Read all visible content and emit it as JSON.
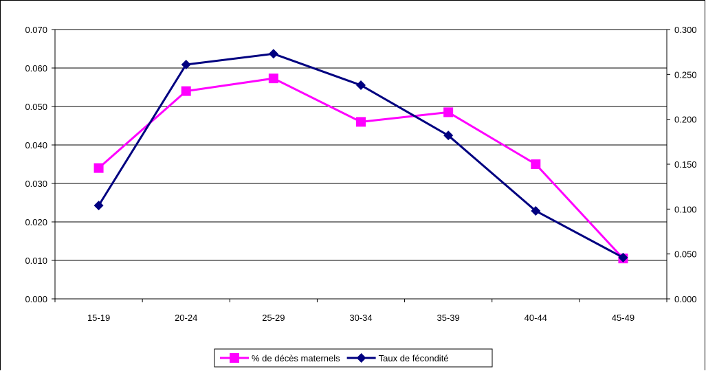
{
  "chart_data": {
    "type": "line",
    "categories": [
      "15-19",
      "20-24",
      "25-29",
      "30-34",
      "35-39",
      "40-44",
      "45-49"
    ],
    "series": [
      {
        "name": "% de décès maternels",
        "axis": "left",
        "color": "#ff00ff",
        "marker": "square",
        "values": [
          0.034,
          0.054,
          0.0573,
          0.046,
          0.0485,
          0.035,
          0.0105
        ]
      },
      {
        "name": "Taux de fécondité",
        "axis": "right",
        "color": "#000080",
        "marker": "diamond",
        "values": [
          0.104,
          0.261,
          0.273,
          0.238,
          0.182,
          0.098,
          0.046
        ]
      }
    ],
    "y_left": {
      "min": 0,
      "max": 0.07,
      "step": 0.01,
      "ticks": [
        "0.000",
        "0.010",
        "0.020",
        "0.030",
        "0.040",
        "0.050",
        "0.060",
        "0.070"
      ]
    },
    "y_right": {
      "min": 0,
      "max": 0.3,
      "step": 0.05,
      "ticks": [
        "0.000",
        "0.050",
        "0.100",
        "0.150",
        "0.200",
        "0.250",
        "0.300"
      ]
    },
    "grid": true,
    "legend_position": "bottom"
  }
}
